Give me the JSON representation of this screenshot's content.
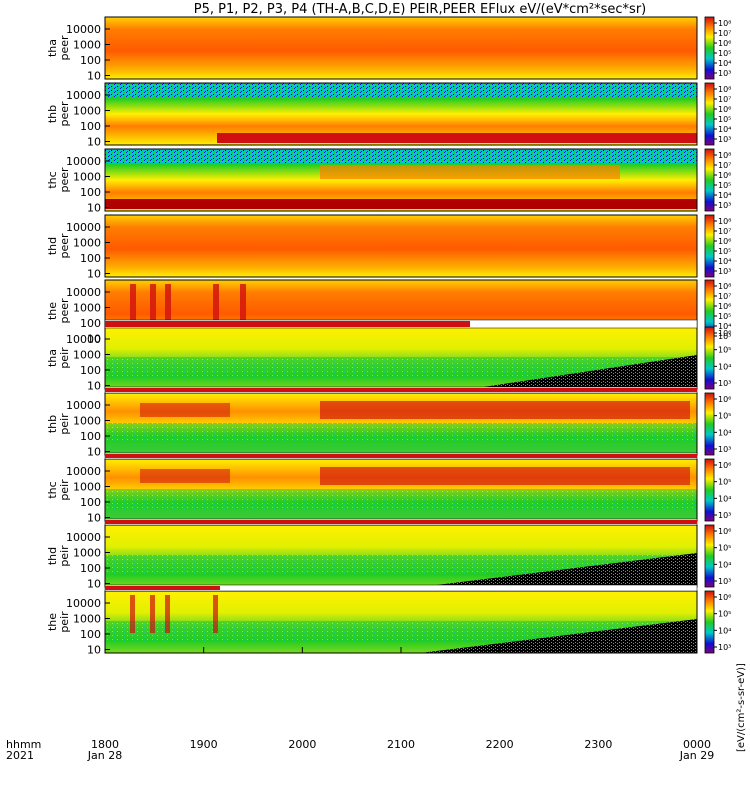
{
  "title": "P5, P1, P2, P3, P4 (TH-A,B,C,D,E) PEIR,PEER EFlux eV/(eV*cm²*sec*sr)",
  "x_axis": {
    "left_label_1": "hhmm",
    "left_label_2": "2021",
    "ticks": [
      "1800",
      "1900",
      "2000",
      "2100",
      "2200",
      "2300",
      "0000"
    ],
    "date_start": "Jan 28",
    "date_end": "Jan 29"
  },
  "y_ticks": [
    "10000",
    "1000",
    "100",
    "10"
  ],
  "colorbar_label": "[eV/(cm²-s-sr-eV)]",
  "colors": {
    "red": "#d01010",
    "orange": "#ff7d00",
    "yellow": "#fff000",
    "green": "#22cc22",
    "cyan": "#00c8c8",
    "blue": "#1010d0",
    "black": "#000000"
  },
  "chart_data": [
    {
      "type": "heatmap",
      "name": "tha peer",
      "label_1": "tha",
      "label_2": "peer",
      "cb_ticks": [
        "10⁸",
        "10⁷",
        "10⁶",
        "10⁵",
        "10⁴",
        "10³"
      ]
    },
    {
      "type": "heatmap",
      "name": "thb peer",
      "label_1": "thb",
      "label_2": "peer",
      "cb_ticks": [
        "10⁸",
        "10⁷",
        "10⁶",
        "10⁵",
        "10⁴",
        "10³"
      ]
    },
    {
      "type": "heatmap",
      "name": "thc peer",
      "label_1": "thc",
      "label_2": "peer",
      "cb_ticks": [
        "10⁸",
        "10⁷",
        "10⁶",
        "10⁵",
        "10⁴",
        "10³"
      ]
    },
    {
      "type": "heatmap",
      "name": "thd peer",
      "label_1": "thd",
      "label_2": "peer",
      "cb_ticks": [
        "10⁸",
        "10⁷",
        "10⁶",
        "10⁵",
        "10⁴",
        "10³"
      ]
    },
    {
      "type": "heatmap",
      "name": "the peer",
      "label_1": "the",
      "label_2": "peer",
      "cb_ticks": [
        "10⁸",
        "10⁷",
        "10⁶",
        "10⁵",
        "10⁴",
        "10³"
      ]
    },
    {
      "type": "heatmap",
      "name": "tha peir",
      "label_1": "tha",
      "label_2": "peir",
      "cb_ticks": [
        "10⁶",
        "10⁵",
        "10⁴",
        "10³"
      ]
    },
    {
      "type": "heatmap",
      "name": "thb peir",
      "label_1": "thb",
      "label_2": "peir",
      "cb_ticks": [
        "10⁶",
        "10⁵",
        "10⁴",
        "10³"
      ]
    },
    {
      "type": "heatmap",
      "name": "thc peir",
      "label_1": "thc",
      "label_2": "peir",
      "cb_ticks": [
        "10⁶",
        "10⁵",
        "10⁴",
        "10³"
      ]
    },
    {
      "type": "heatmap",
      "name": "thd peir",
      "label_1": "thd",
      "label_2": "peir",
      "cb_ticks": [
        "10⁶",
        "10⁵",
        "10⁴",
        "10³"
      ]
    },
    {
      "type": "heatmap",
      "name": "the peir",
      "label_1": "the",
      "label_2": "peir",
      "cb_ticks": [
        "10⁶",
        "10⁵",
        "10⁴",
        "10³"
      ]
    }
  ]
}
